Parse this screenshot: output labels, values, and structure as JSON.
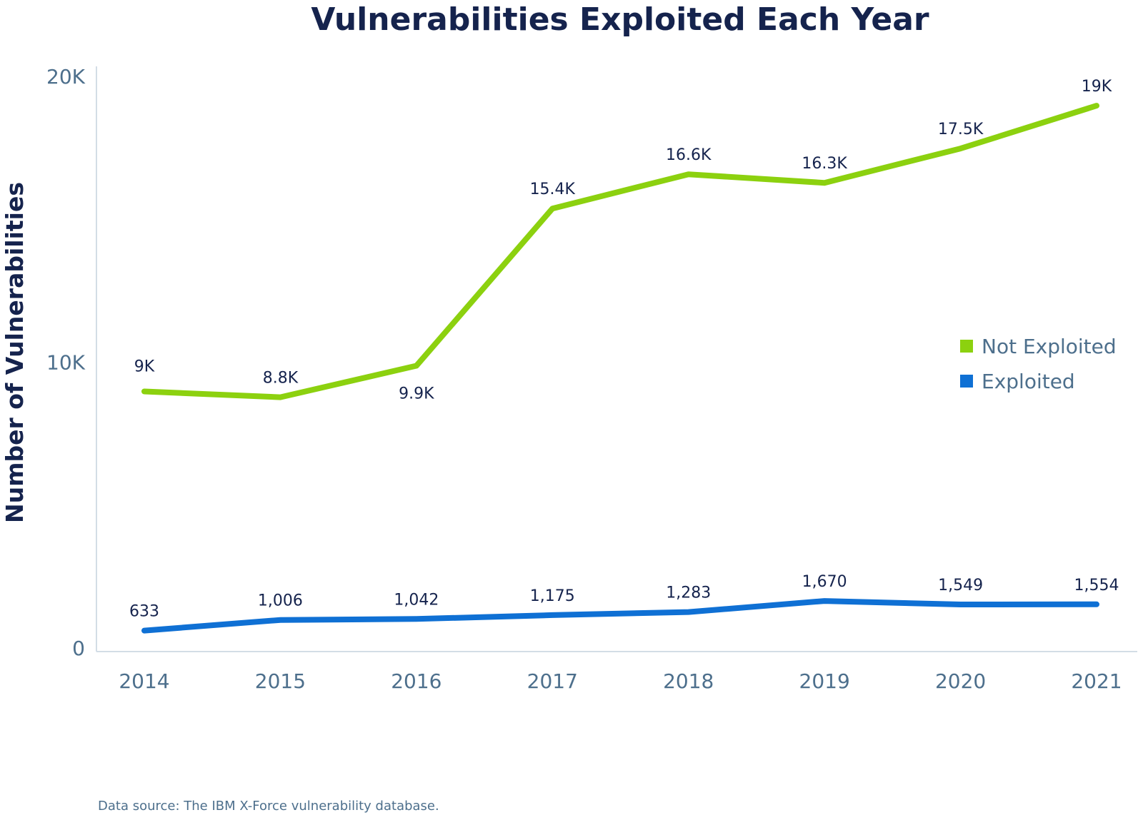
{
  "chart_data": {
    "type": "line",
    "title": "Vulnerabilities Exploited Each Year",
    "xlabel": "",
    "ylabel": "Number of Vulnerabilities",
    "categories": [
      "2014",
      "2015",
      "2016",
      "2017",
      "2018",
      "2019",
      "2020",
      "2021"
    ],
    "ylim": [
      0,
      20000
    ],
    "yticks": [
      0,
      10000,
      20000
    ],
    "ytick_labels": [
      "0",
      "10K",
      "20K"
    ],
    "grid": false,
    "legend_position": "right",
    "source_note": "Data source: The IBM X-Force vulnerability database.",
    "series": [
      {
        "name": "Not Exploited",
        "color": "#8cd10f",
        "values": [
          9000,
          8800,
          9900,
          15400,
          16600,
          16300,
          17500,
          19000
        ],
        "labels": [
          "9K",
          "8.8K",
          "9.9K",
          "15.4K",
          "16.6K",
          "16.3K",
          "17.5K",
          "19K"
        ]
      },
      {
        "name": "Exploited",
        "color": "#0f70d4",
        "values": [
          633,
          1006,
          1042,
          1175,
          1283,
          1670,
          1549,
          1554
        ],
        "labels": [
          "633",
          "1,006",
          "1,042",
          "1,175",
          "1,283",
          "1,670",
          "1,549",
          "1,554"
        ]
      }
    ]
  }
}
